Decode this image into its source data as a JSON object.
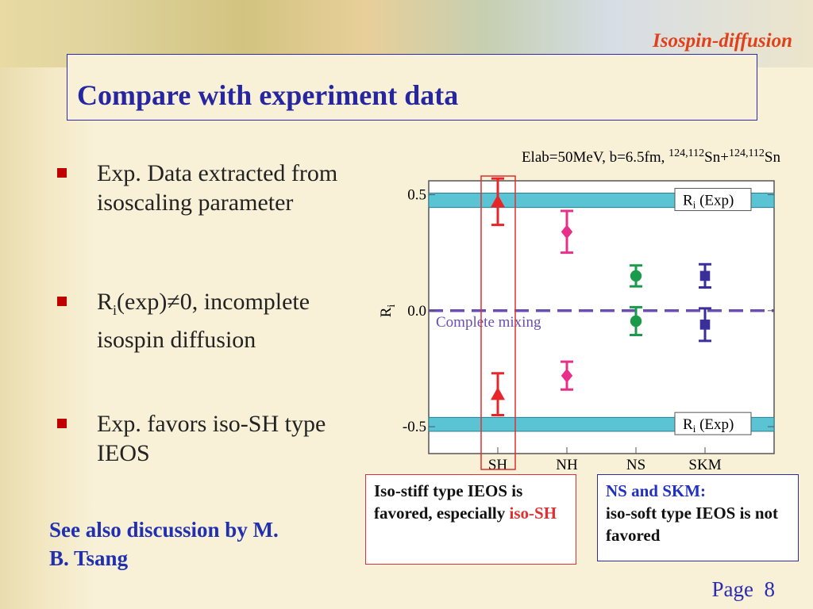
{
  "header": {
    "tag": "Isospin-diffusion",
    "title": "Compare with experiment data"
  },
  "bullets": [
    {
      "text": "Exp. Data extracted from isoscaling parameter"
    },
    {
      "base": "R",
      "sub": "i",
      "rest": "(exp)≠0, incomplete isospin diffusion"
    },
    {
      "text": "Exp. favors iso-SH type IEOS"
    }
  ],
  "note": "See also discussion by M. B. Tsang",
  "box_stiff": {
    "text": "Iso-stiff type IEOS is favored, especially",
    "highlight": "iso-SH"
  },
  "box_soft": {
    "heading": "NS and SKM:",
    "text": "iso-soft type IEOS is not favored"
  },
  "page": {
    "label": "Page",
    "number": 8
  },
  "chart_data": {
    "type": "errorbar",
    "title": [
      "Elab=50MeV, b=6.5fm, ",
      "124,112",
      "Sn+",
      "124,112",
      "Sn"
    ],
    "ylabel": {
      "base": "R",
      "sub": "i"
    },
    "categories": [
      "SH",
      "NH",
      "NS",
      "SKM"
    ],
    "colors": [
      "#e8262a",
      "#e8308a",
      "#1a9a4a",
      "#3a2e9a"
    ],
    "markers": [
      "triangle",
      "diamond",
      "circle",
      "square"
    ],
    "series": [
      {
        "values": [
          0.47,
          0.34,
          0.15,
          0.15
        ],
        "errors": [
          0.1,
          0.09,
          0.045,
          0.05
        ]
      },
      {
        "values": [
          -0.36,
          -0.28,
          -0.045,
          -0.06
        ],
        "errors": [
          0.09,
          0.06,
          0.06,
          0.07
        ]
      }
    ],
    "bands": [
      {
        "range": [
          0.445,
          0.507
        ],
        "label_base": "R",
        "label_sub": "i",
        "label_rest": " (Exp)"
      },
      {
        "range": [
          -0.52,
          -0.46
        ],
        "label_base": "R",
        "label_sub": "i",
        "label_rest": " (Exp)"
      }
    ],
    "band_color": "#5bc4d4",
    "reference": {
      "value": 0,
      "label": "Complete mixing",
      "color": "#6a4fb0"
    },
    "highlight_index": 0,
    "ylim": [
      -0.616,
      0.56
    ],
    "yticks": [
      0.5,
      {
        "value": 0,
        "label": "0.0"
      },
      -0.5
    ]
  }
}
